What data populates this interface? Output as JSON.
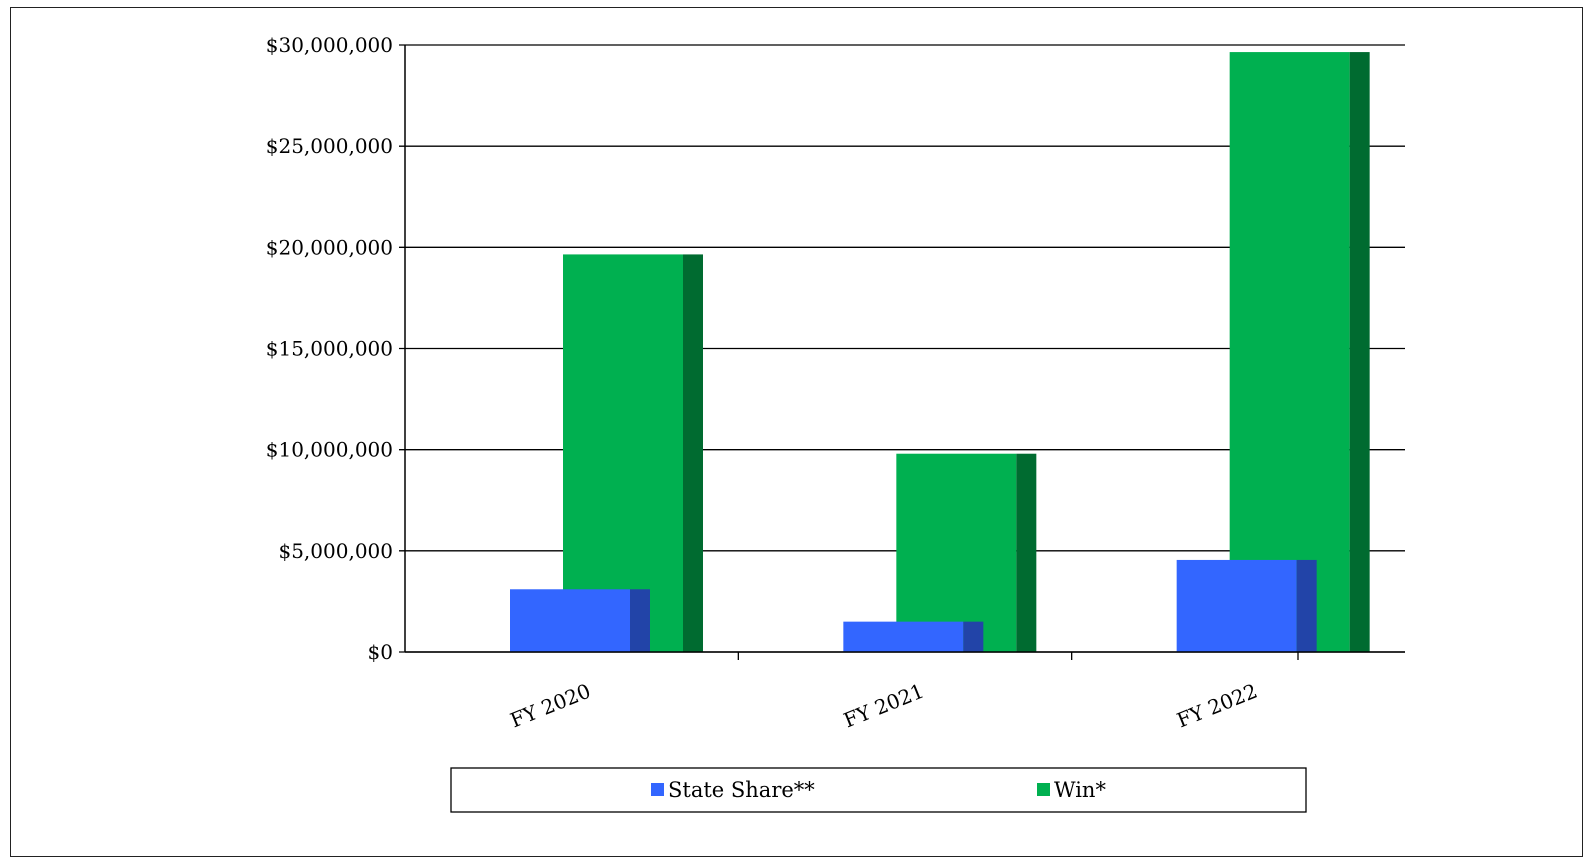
{
  "chart_data": {
    "type": "bar",
    "categories": [
      "FY 2020",
      "FY 2021",
      "FY 2022"
    ],
    "series": [
      {
        "name": "State Share**",
        "values": [
          3100000,
          1500000,
          4550000
        ],
        "color": "#3366ff",
        "side_color": "#2244a8"
      },
      {
        "name": "Win*",
        "values": [
          19650000,
          9800000,
          29650000
        ],
        "color": "#00b050",
        "side_color": "#006b30"
      }
    ],
    "title": "",
    "xlabel": "",
    "ylabel": "",
    "ylim": [
      0,
      30000000
    ],
    "yticks": [
      0,
      5000000,
      10000000,
      15000000,
      20000000,
      25000000,
      30000000
    ],
    "ytick_labels": [
      "$0",
      "$5,000,000",
      "$10,000,000",
      "$15,000,000",
      "$20,000,000",
      "$25,000,000",
      "$30,000,000"
    ],
    "grid": true,
    "legend_position": "bottom",
    "style": "3d-bar"
  }
}
